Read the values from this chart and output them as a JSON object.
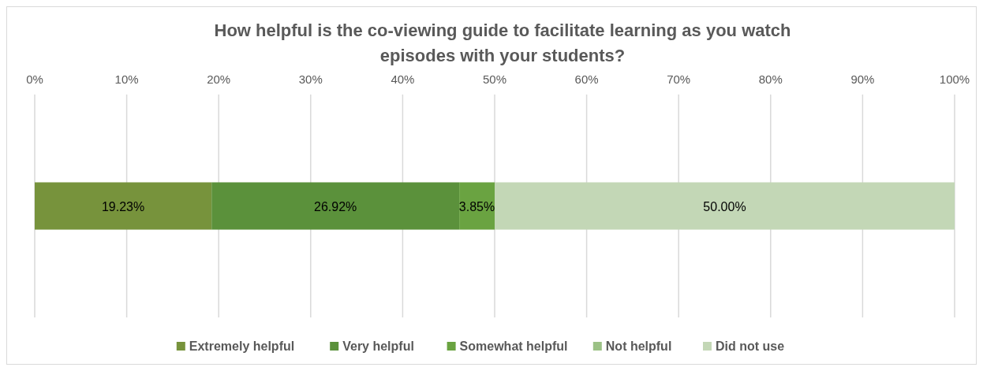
{
  "chart_data": {
    "type": "bar",
    "title": "How helpful is the co-viewing guide to facilitate learning as you watch episodes with your students?",
    "orientation": "horizontal",
    "stacked": true,
    "categories": [
      null
    ],
    "series": [
      {
        "name": "Extremely helpful",
        "color": "#77933c",
        "values": [
          19.23
        ],
        "value_labels": [
          "19.23%"
        ]
      },
      {
        "name": "Very helpful",
        "color": "#5b913b",
        "values": [
          26.92
        ],
        "value_labels": [
          "26.92%"
        ]
      },
      {
        "name": "Somewhat helpful",
        "color": "#6aa341",
        "values": [
          3.85
        ],
        "value_labels": [
          "3.85%"
        ]
      },
      {
        "name": "Not helpful",
        "color": "#9bc185",
        "values": [
          0
        ],
        "value_labels": [
          null
        ]
      },
      {
        "name": "Did not use",
        "color": "#c3d7b6",
        "values": [
          50.0
        ],
        "value_labels": [
          "50.00%"
        ]
      }
    ],
    "xlim": [
      0,
      100
    ],
    "xticks": [
      {
        "value": 0,
        "label": "0%"
      },
      {
        "value": 10,
        "label": "10%"
      },
      {
        "value": 20,
        "label": "20%"
      },
      {
        "value": 30,
        "label": "30%"
      },
      {
        "value": 40,
        "label": "40%"
      },
      {
        "value": 50,
        "label": "50%"
      },
      {
        "value": 60,
        "label": "60%"
      },
      {
        "value": 70,
        "label": "70%"
      },
      {
        "value": 80,
        "label": "80%"
      },
      {
        "value": 90,
        "label": "90%"
      },
      {
        "value": 100,
        "label": "100%"
      }
    ],
    "grid": "x",
    "legend": "bottom"
  }
}
